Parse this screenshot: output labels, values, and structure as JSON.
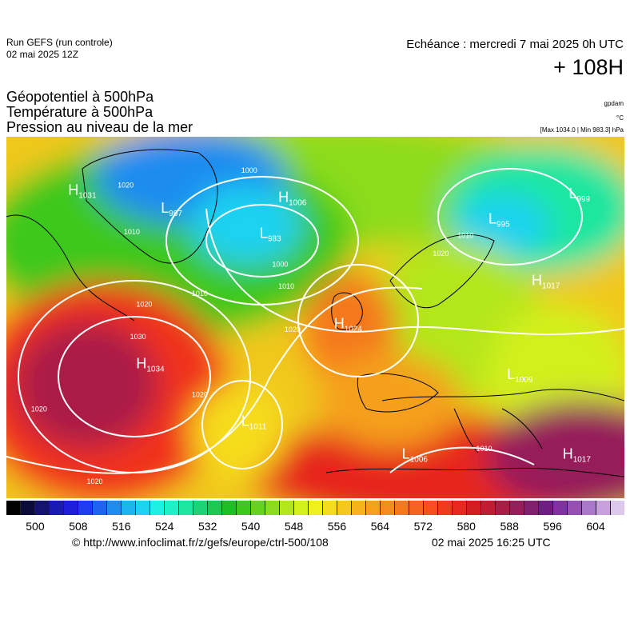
{
  "header": {
    "run_name": "Run GEFS (run controle)",
    "run_date": "02 mai 2025 12Z",
    "valid_time": "Echéance : mercredi 7 mai 2025 0h UTC",
    "lead_time": "+ 108H"
  },
  "parameters": [
    "Géopotentiel à 500hPa",
    "Température à 500hPa",
    "Pression au niveau de la mer"
  ],
  "units": {
    "geopotential": "gpdam",
    "temperature": "°C",
    "pressure_range": "[Max 1034.0 | Min 983.3] hPa"
  },
  "pressure_centers": [
    {
      "type": "H",
      "value": "1034",
      "fx": 0.21,
      "fy": 0.64
    },
    {
      "type": "H",
      "value": "1031",
      "fx": 0.1,
      "fy": 0.16
    },
    {
      "type": "L",
      "value": "997",
      "fx": 0.25,
      "fy": 0.21
    },
    {
      "type": "H",
      "value": "1006",
      "fx": 0.44,
      "fy": 0.18
    },
    {
      "type": "L",
      "value": "983",
      "fx": 0.41,
      "fy": 0.28
    },
    {
      "type": "L",
      "value": "995",
      "fx": 0.78,
      "fy": 0.24
    },
    {
      "type": "L",
      "value": "999",
      "fx": 0.91,
      "fy": 0.17
    },
    {
      "type": "H",
      "value": "1017",
      "fx": 0.85,
      "fy": 0.41
    },
    {
      "type": "H",
      "value": "1024",
      "fx": 0.53,
      "fy": 0.53
    },
    {
      "type": "L",
      "value": "1009",
      "fx": 0.81,
      "fy": 0.67
    },
    {
      "type": "L",
      "value": "1011",
      "fx": 0.38,
      "fy": 0.8
    },
    {
      "type": "L",
      "value": "1006",
      "fx": 0.64,
      "fy": 0.89
    },
    {
      "type": "H",
      "value": "1017",
      "fx": 0.9,
      "fy": 0.89
    }
  ],
  "isobar_labels": [
    {
      "text": "1020",
      "fx": 0.04,
      "fy": 0.76
    },
    {
      "text": "1020",
      "fx": 0.13,
      "fy": 0.96
    },
    {
      "text": "1030",
      "fx": 0.2,
      "fy": 0.56
    },
    {
      "text": "1020",
      "fx": 0.21,
      "fy": 0.47
    },
    {
      "text": "1020",
      "fx": 0.3,
      "fy": 0.72
    },
    {
      "text": "1010",
      "fx": 0.3,
      "fy": 0.44
    },
    {
      "text": "1010",
      "fx": 0.44,
      "fy": 0.42
    },
    {
      "text": "1020",
      "fx": 0.45,
      "fy": 0.54
    },
    {
      "text": "1000",
      "fx": 0.38,
      "fy": 0.1
    },
    {
      "text": "1000",
      "fx": 0.43,
      "fy": 0.36
    },
    {
      "text": "1020",
      "fx": 0.18,
      "fy": 0.14
    },
    {
      "text": "1010",
      "fx": 0.19,
      "fy": 0.27
    },
    {
      "text": "1010",
      "fx": 0.73,
      "fy": 0.28
    },
    {
      "text": "1020",
      "fx": 0.69,
      "fy": 0.33
    },
    {
      "text": "1010",
      "fx": 0.76,
      "fy": 0.87
    }
  ],
  "colorbar": {
    "colors": [
      "#000000",
      "#0c0c3a",
      "#14146e",
      "#1a1ab4",
      "#1e1ed8",
      "#1e3cf0",
      "#1e64f0",
      "#1e8cf0",
      "#1eb4f0",
      "#1ed2f0",
      "#1ef0e6",
      "#1ef0c8",
      "#1ee6a0",
      "#1ed278",
      "#1ec850",
      "#1ebe28",
      "#3cc81e",
      "#64d21e",
      "#8cdc1e",
      "#b4e61e",
      "#d2f01e",
      "#f0f01e",
      "#f5dc1e",
      "#f5c81e",
      "#f5b41e",
      "#f5a01e",
      "#f58c1e",
      "#f5781e",
      "#f5641e",
      "#f5501e",
      "#f03c1e",
      "#e6281e",
      "#d21e1e",
      "#be1e32",
      "#aa1e46",
      "#961e5a",
      "#821e6e",
      "#6e1e82",
      "#8232a0",
      "#9650b4",
      "#aa78c8",
      "#c8a0dc",
      "#dcc8eb"
    ],
    "tick_labels": [
      "500",
      "508",
      "516",
      "524",
      "532",
      "540",
      "548",
      "556",
      "564",
      "572",
      "580",
      "588",
      "596",
      "604"
    ]
  },
  "footer": {
    "source_url": "© http://www.infoclimat.fr/z/gefs/europe/ctrl-500/108",
    "generated": "02 mai 2025 16:25 UTC"
  }
}
